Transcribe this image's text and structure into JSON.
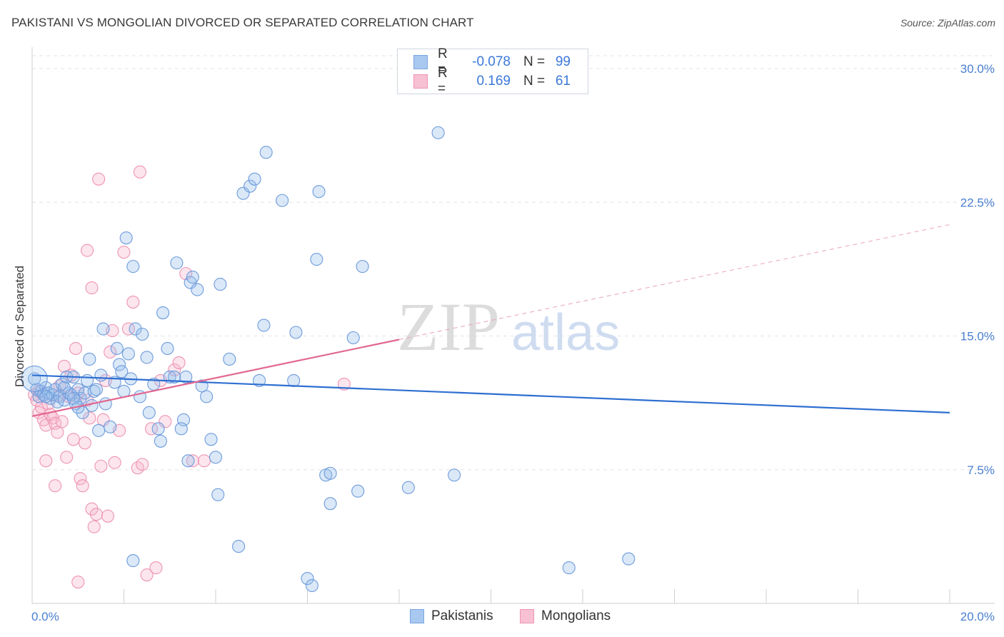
{
  "header": {
    "title": "PAKISTANI VS MONGOLIAN DIVORCED OR SEPARATED CORRELATION CHART",
    "source": "Source: ZipAtlas.com"
  },
  "watermark": {
    "zip": "ZIP",
    "atlas": "atlas"
  },
  "legend": {
    "rows": [
      {
        "r_label": "R =",
        "r_value": "-0.078",
        "n_label": "N =",
        "n_value": "99",
        "color": "#a9c8f0",
        "border": "#7aa6e0"
      },
      {
        "r_label": "R =",
        "r_value": "0.169",
        "n_label": "N =",
        "n_value": "61",
        "color": "#f7c0d3",
        "border": "#ee94b4"
      }
    ]
  },
  "bottom_legend": {
    "items": [
      {
        "label": "Pakistanis",
        "color": "#a9c8f0",
        "border": "#7aa6e0"
      },
      {
        "label": "Mongolians",
        "color": "#f7c0d3",
        "border": "#ee94b4"
      }
    ]
  },
  "chart_data": {
    "type": "scatter",
    "title": "PAKISTANI VS MONGOLIAN DIVORCED OR SEPARATED CORRELATION CHART",
    "xlabel": "",
    "ylabel": "Divorced or Separated",
    "xlim": [
      0,
      20
    ],
    "ylim": [
      0,
      30
    ],
    "x_ticks": [
      "0.0%",
      "20.0%"
    ],
    "y_ticks": [
      {
        "value": 7.5,
        "label": "7.5%"
      },
      {
        "value": 15.0,
        "label": "15.0%"
      },
      {
        "value": 22.5,
        "label": "22.5%"
      },
      {
        "value": 30.0,
        "label": "30.0%"
      }
    ],
    "grid": true,
    "colors": {
      "pakistanis": "#5b8fd6",
      "mongolians": "#ea7ea3",
      "blue_line": "#2e6fd1",
      "pink_line": "#e2678f"
    },
    "series": [
      {
        "name": "Pakistanis",
        "trend": {
          "x": [
            0,
            20
          ],
          "y": [
            12.8,
            10.7
          ]
        },
        "points": [
          [
            0.1,
            12.0
          ],
          [
            0.15,
            11.6
          ],
          [
            0.2,
            11.9
          ],
          [
            0.25,
            11.7
          ],
          [
            0.3,
            12.1
          ],
          [
            0.35,
            11.8
          ],
          [
            0.4,
            11.5
          ],
          [
            0.45,
            11.7
          ],
          [
            0.5,
            12.0
          ],
          [
            0.55,
            11.3
          ],
          [
            0.6,
            11.6
          ],
          [
            0.65,
            12.3
          ],
          [
            0.7,
            11.4
          ],
          [
            0.75,
            12.7
          ],
          [
            0.8,
            11.8
          ],
          [
            0.85,
            11.7
          ],
          [
            0.9,
            12.7
          ],
          [
            0.95,
            11.2
          ],
          [
            1.0,
            12.0
          ],
          [
            1.05,
            11.5
          ],
          [
            1.1,
            10.7
          ],
          [
            1.15,
            11.8
          ],
          [
            1.2,
            12.5
          ],
          [
            1.25,
            13.7
          ],
          [
            1.3,
            11.1
          ],
          [
            1.35,
            11.9
          ],
          [
            1.45,
            9.7
          ],
          [
            1.5,
            12.8
          ],
          [
            1.55,
            15.4
          ],
          [
            1.6,
            11.2
          ],
          [
            1.7,
            9.9
          ],
          [
            1.8,
            12.4
          ],
          [
            1.85,
            14.3
          ],
          [
            1.9,
            13.4
          ],
          [
            1.95,
            13.0
          ],
          [
            2.0,
            11.9
          ],
          [
            2.1,
            14.0
          ],
          [
            2.15,
            12.6
          ],
          [
            2.2,
            18.9
          ],
          [
            2.25,
            15.4
          ],
          [
            2.35,
            11.6
          ],
          [
            2.4,
            15.1
          ],
          [
            2.5,
            13.8
          ],
          [
            2.55,
            10.7
          ],
          [
            2.65,
            12.3
          ],
          [
            2.75,
            9.8
          ],
          [
            2.8,
            9.1
          ],
          [
            2.85,
            16.3
          ],
          [
            2.95,
            14.3
          ],
          [
            3.0,
            12.7
          ],
          [
            3.1,
            12.7
          ],
          [
            3.15,
            19.1
          ],
          [
            3.3,
            10.3
          ],
          [
            3.4,
            8.0
          ],
          [
            3.45,
            18.0
          ],
          [
            3.5,
            18.3
          ],
          [
            3.6,
            17.6
          ],
          [
            3.7,
            12.2
          ],
          [
            3.8,
            11.6
          ],
          [
            3.9,
            9.2
          ],
          [
            4.0,
            8.2
          ],
          [
            4.05,
            6.1
          ],
          [
            4.1,
            17.9
          ],
          [
            4.3,
            13.7
          ],
          [
            4.5,
            3.2
          ],
          [
            4.6,
            23.0
          ],
          [
            4.75,
            23.4
          ],
          [
            4.85,
            23.8
          ],
          [
            4.95,
            12.5
          ],
          [
            5.05,
            15.6
          ],
          [
            5.1,
            25.3
          ],
          [
            5.45,
            22.6
          ],
          [
            5.7,
            12.5
          ],
          [
            5.75,
            15.2
          ],
          [
            6.0,
            1.4
          ],
          [
            6.1,
            1.0
          ],
          [
            6.2,
            19.3
          ],
          [
            6.25,
            23.1
          ],
          [
            6.4,
            7.2
          ],
          [
            6.5,
            7.3
          ],
          [
            6.5,
            5.6
          ],
          [
            7.0,
            14.9
          ],
          [
            7.1,
            6.3
          ],
          [
            7.2,
            18.9
          ],
          [
            8.2,
            6.5
          ],
          [
            8.85,
            26.4
          ],
          [
            9.2,
            7.2
          ],
          [
            11.7,
            2.0
          ],
          [
            13.0,
            2.5
          ],
          [
            0.05,
            12.6
          ],
          [
            2.2,
            2.4
          ],
          [
            0.7,
            12.1
          ],
          [
            1.4,
            12.0
          ],
          [
            2.05,
            20.5
          ],
          [
            3.35,
            12.7
          ],
          [
            0.3,
            11.6
          ],
          [
            0.9,
            11.5
          ],
          [
            1.0,
            11.0
          ],
          [
            3.25,
            9.8
          ]
        ]
      },
      {
        "name": "Mongolians",
        "trend": {
          "x": [
            0,
            8
          ],
          "y": [
            10.5,
            14.8
          ]
        },
        "points": [
          [
            0.05,
            11.7
          ],
          [
            0.1,
            11.4
          ],
          [
            0.15,
            10.7
          ],
          [
            0.2,
            11.0
          ],
          [
            0.25,
            10.3
          ],
          [
            0.3,
            10.0
          ],
          [
            0.35,
            11.2
          ],
          [
            0.4,
            10.6
          ],
          [
            0.45,
            10.4
          ],
          [
            0.5,
            10.1
          ],
          [
            0.55,
            9.6
          ],
          [
            0.6,
            12.2
          ],
          [
            0.65,
            10.2
          ],
          [
            0.7,
            13.3
          ],
          [
            0.75,
            8.2
          ],
          [
            0.8,
            11.6
          ],
          [
            0.85,
            12.8
          ],
          [
            0.9,
            9.2
          ],
          [
            0.95,
            14.3
          ],
          [
            1.0,
            11.8
          ],
          [
            1.05,
            7.0
          ],
          [
            1.1,
            6.6
          ],
          [
            1.15,
            9.0
          ],
          [
            1.2,
            11.4
          ],
          [
            1.25,
            10.4
          ],
          [
            1.3,
            5.3
          ],
          [
            1.35,
            4.3
          ],
          [
            1.4,
            5.0
          ],
          [
            1.45,
            23.8
          ],
          [
            1.5,
            7.7
          ],
          [
            1.55,
            10.3
          ],
          [
            1.6,
            12.5
          ],
          [
            1.65,
            4.9
          ],
          [
            1.7,
            14.1
          ],
          [
            1.75,
            15.3
          ],
          [
            1.8,
            7.9
          ],
          [
            1.9,
            9.7
          ],
          [
            2.0,
            19.7
          ],
          [
            2.1,
            15.4
          ],
          [
            2.2,
            16.9
          ],
          [
            2.3,
            7.6
          ],
          [
            2.35,
            24.2
          ],
          [
            2.4,
            7.8
          ],
          [
            2.5,
            1.6
          ],
          [
            2.6,
            9.8
          ],
          [
            2.8,
            12.5
          ],
          [
            2.9,
            10.2
          ],
          [
            3.1,
            13.1
          ],
          [
            3.2,
            13.5
          ],
          [
            3.35,
            18.5
          ],
          [
            3.5,
            8.0
          ],
          [
            3.75,
            8.0
          ],
          [
            0.3,
            8.0
          ],
          [
            0.5,
            6.6
          ],
          [
            1.2,
            19.8
          ],
          [
            1.3,
            17.7
          ],
          [
            1.0,
            1.2
          ],
          [
            0.15,
            11.9
          ],
          [
            2.7,
            2.0
          ],
          [
            6.8,
            12.3
          ],
          [
            0.6,
            11.7
          ]
        ]
      }
    ]
  }
}
